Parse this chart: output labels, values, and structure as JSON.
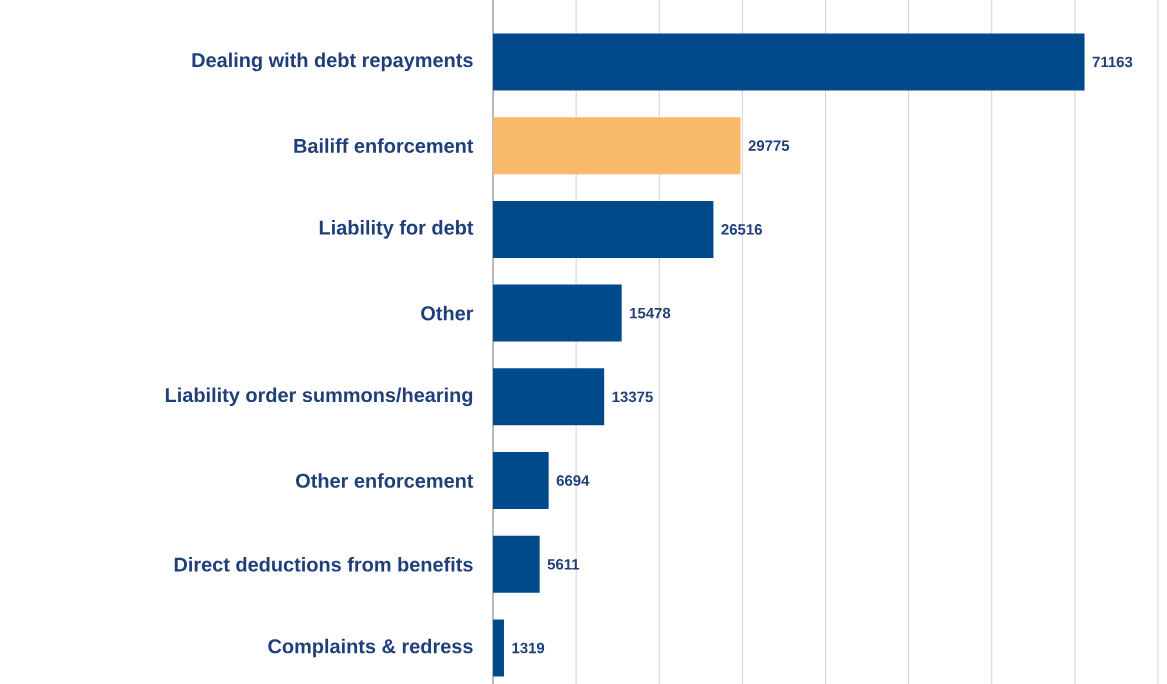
{
  "chart_data": {
    "type": "bar",
    "orientation": "horizontal",
    "categories": [
      "Dealing with debt repayments",
      "Bailiff enforcement",
      "Liability for debt",
      "Other",
      "Liability order summons/hearing",
      "Other enforcement",
      "Direct deductions from benefits",
      "Complaints & redress"
    ],
    "values": [
      71163,
      29775,
      26516,
      15478,
      13375,
      6694,
      5611,
      1319
    ],
    "colors": [
      "#004a8c",
      "#f9b96b",
      "#004a8c",
      "#004a8c",
      "#004a8c",
      "#004a8c",
      "#004a8c",
      "#004a8c"
    ],
    "xlim": [
      0,
      80000
    ],
    "xticks": [
      {
        "value": 0,
        "label": null
      },
      {
        "value": 10000,
        "label": null
      },
      {
        "value": 20000,
        "label": null
      },
      {
        "value": 30000,
        "label": null
      },
      {
        "value": 40000,
        "label": null
      },
      {
        "value": 50000,
        "label": null
      },
      {
        "value": 60000,
        "label": null
      },
      {
        "value": 70000,
        "label": null
      },
      {
        "value": 80000,
        "label": null
      }
    ],
    "grid": "x",
    "tick_labels": "y",
    "data_labels": true
  }
}
